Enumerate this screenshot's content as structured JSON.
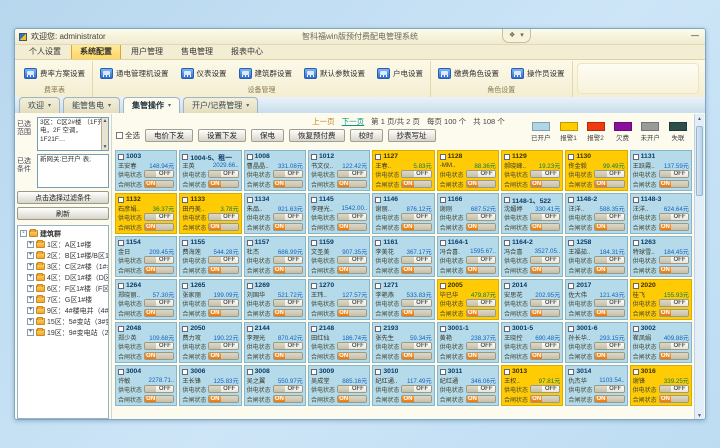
{
  "window": {
    "title": "智科福win版预付费配电管理系统",
    "welcome_label": "欢迎您:",
    "username": "administrator"
  },
  "icons": {
    "tab_dropdown": "▾",
    "minimize": "—",
    "gadget_left": "❖",
    "gadget_right": "▾",
    "tree_expand": "+",
    "tree_collapse": "-",
    "scroll_up": "▲",
    "scroll_down": "▼"
  },
  "menu": {
    "items": [
      "个人设置",
      "系统配置",
      "用户管理",
      "售电管理",
      "报表中心"
    ],
    "active_index": 1
  },
  "ribbon": {
    "groups": [
      {
        "label": "费率表",
        "buttons": [
          "费率方案设置"
        ]
      },
      {
        "label": "设备管理",
        "buttons": [
          "通电管理机设置",
          "仪表设置",
          "建筑群设置",
          "默认参数设置",
          "户电设置"
        ]
      },
      {
        "label": "角色设置",
        "buttons": [
          "缴费角色设置",
          "操作员设置"
        ]
      }
    ]
  },
  "tabs": {
    "items": [
      "欢迎",
      "能管售电",
      "集管操作",
      "开户/记费管理"
    ],
    "active_index": 2
  },
  "sidebar": {
    "range_label": "已选范围",
    "range_text": "3区：C区2#楼 （1F充电，2F 空调，1F21F…",
    "condition_label": "已选条件",
    "condition_text": "新网关:已开户 表;",
    "filter_button": "点击选择过滤条件",
    "refresh_button": "刷新",
    "tree_root": "建筑群",
    "tree_items": [
      "1区：A区1#楼",
      "2区：B区1#楼/B区1#楼",
      "3区：C区2#楼（1#会…",
      "4区：D区1#楼（D区1…",
      "6区：F区1#楼（F区1#…",
      "7区：G区1#楼",
      "9区：4#楼电井（4#楼…",
      "15区：5#变站（3#变…",
      "19区：9#变电站（2#…"
    ]
  },
  "pager": {
    "prev": "上一页",
    "next": "下一页",
    "page_info": "第 1 页/共 2 页",
    "per_page": "每页 100 个",
    "total": "共 108 个"
  },
  "toolbar": {
    "select_all": "全选",
    "buttons": [
      "电价下发",
      "设置下发",
      "保电",
      "恢复预付费",
      "校时",
      "抄表写址"
    ]
  },
  "legend": {
    "items": [
      {
        "label": "已开户",
        "color": "#aed6e8"
      },
      {
        "label": "报警1",
        "color": "#ffcc00"
      },
      {
        "label": "报警2",
        "color": "#f03a10"
      },
      {
        "label": "欠费",
        "color": "#8a0f9e"
      },
      {
        "label": "未开户",
        "color": "#9a9a9a"
      },
      {
        "label": "失联",
        "color": "#2e4d4d"
      }
    ]
  },
  "card_labels": {
    "supply": "供电状态",
    "close": "合闸状态",
    "on": "ON",
    "off": "OFF"
  },
  "cards": [
    {
      "room": "1003",
      "color": "blue",
      "name": "王安春",
      "balance": "148.94元",
      "supply": "OFF",
      "close": "ON"
    },
    {
      "room": "1004-5、租一",
      "color": "blue",
      "name": "王英",
      "balance": "2029.66..",
      "supply": "OFF",
      "close": "ON"
    },
    {
      "room": "1008",
      "color": "blue",
      "name": "曹晶晶..",
      "balance": "331.08元",
      "supply": "OFF",
      "close": "ON"
    },
    {
      "room": "1012",
      "color": "blue",
      "name": "书文仪..",
      "balance": "122.42元",
      "supply": "OFF",
      "close": "ON"
    },
    {
      "room": "1127",
      "color": "yellow",
      "name": "王春..",
      "balance": "5.83元",
      "supply": "OFF",
      "close": "ON"
    },
    {
      "room": "1128",
      "color": "yellow",
      "name": "-MM..",
      "balance": "88.36元",
      "supply": "OFF",
      "close": "ON"
    },
    {
      "room": "1129",
      "color": "yellow",
      "name": "郝晓峰..",
      "balance": "19.23元",
      "supply": "OFF",
      "close": "ON"
    },
    {
      "room": "1130",
      "color": "yellow",
      "name": "佟金毅",
      "balance": "99.49元",
      "supply": "OFF",
      "close": "ON"
    },
    {
      "room": "1131",
      "color": "blue",
      "name": "王跃霞..",
      "balance": "137.59元",
      "supply": "OFF",
      "close": "ON"
    },
    {
      "room": "1132",
      "color": "yellow",
      "name": "石彦娟..",
      "balance": "36.37元",
      "supply": "OFF",
      "close": "ON"
    },
    {
      "room": "1133",
      "color": "yellow",
      "name": "田丹美..",
      "balance": "3.78元",
      "supply": "OFF",
      "close": "ON"
    },
    {
      "room": "1134",
      "color": "blue",
      "name": "朱品..",
      "balance": "921.63元",
      "supply": "OFF",
      "close": "ON"
    },
    {
      "room": "1145",
      "color": "blue",
      "name": "李理光..",
      "balance": "1542.00..",
      "supply": "OFF",
      "close": "ON"
    },
    {
      "room": "1146",
      "color": "blue",
      "name": "谢丽..",
      "balance": "876.12元",
      "supply": "OFF",
      "close": "ON"
    },
    {
      "room": "1166",
      "color": "blue",
      "name": "谢刚",
      "balance": "687.52元",
      "supply": "OFF",
      "close": "ON"
    },
    {
      "room": "1148-1、522",
      "color": "blue",
      "name": "沈媚婷",
      "balance": "330.41元",
      "supply": "OFF",
      "close": "ON"
    },
    {
      "room": "1148-2",
      "color": "blue",
      "name": "汪洋..",
      "balance": "588.35元",
      "supply": "OFF",
      "close": "ON"
    },
    {
      "room": "1148-3",
      "color": "blue",
      "name": "汪洋..",
      "balance": "624.64元",
      "supply": "OFF",
      "close": "ON"
    },
    {
      "room": "1154",
      "color": "blue",
      "name": "金日",
      "balance": "209.45元",
      "supply": "OFF",
      "close": "ON"
    },
    {
      "room": "1155",
      "color": "blue",
      "name": "费海莲",
      "balance": "544.28元",
      "supply": "OFF",
      "close": "ON"
    },
    {
      "room": "1157",
      "color": "blue",
      "name": "杜杰",
      "balance": "686.99元",
      "supply": "OFF",
      "close": "ON"
    },
    {
      "room": "1159",
      "color": "blue",
      "name": "文圣美",
      "balance": "907.35元",
      "supply": "OFF",
      "close": "ON"
    },
    {
      "room": "1161",
      "color": "blue",
      "name": "李美花",
      "balance": "367.17元",
      "supply": "OFF",
      "close": "ON"
    },
    {
      "room": "1164-1",
      "color": "blue",
      "name": "冯合喜.",
      "balance": "1595.67..",
      "supply": "OFF",
      "close": "ON"
    },
    {
      "room": "1164-2",
      "color": "blue",
      "name": "冯合喜",
      "balance": "3527.05..",
      "supply": "OFF",
      "close": "ON"
    },
    {
      "room": "1258",
      "color": "blue",
      "name": "王福茹..",
      "balance": "184.31元",
      "supply": "OFF",
      "close": "ON"
    },
    {
      "room": "1263",
      "color": "blue",
      "name": "特球雪..",
      "balance": "184.45元",
      "supply": "OFF",
      "close": "ON"
    },
    {
      "room": "1264",
      "color": "blue",
      "name": "郑晓丽..",
      "balance": "57.30元",
      "supply": "OFF",
      "close": "ON"
    },
    {
      "room": "1265",
      "color": "blue",
      "name": "张家丽",
      "balance": "199.09元",
      "supply": "OFF",
      "close": "ON"
    },
    {
      "room": "1269",
      "color": "blue",
      "name": "刘国华",
      "balance": "521.72元",
      "supply": "OFF",
      "close": "ON"
    },
    {
      "room": "1270",
      "color": "blue",
      "name": "王玮..",
      "balance": "127.57元",
      "supply": "OFF",
      "close": "ON"
    },
    {
      "room": "1271",
      "color": "blue",
      "name": "李艳燕",
      "balance": "533.83元",
      "supply": "OFF",
      "close": "ON"
    },
    {
      "room": "2005",
      "color": "yellow",
      "name": "毕已华",
      "balance": "479.87元",
      "supply": "OFF",
      "close": "ON"
    },
    {
      "room": "2014",
      "color": "blue",
      "name": "安思花",
      "balance": "202.95元",
      "supply": "OFF",
      "close": "ON"
    },
    {
      "room": "2017",
      "color": "blue",
      "name": "佐大伟",
      "balance": "121.43元",
      "supply": "OFF",
      "close": "ON"
    },
    {
      "room": "2020",
      "color": "yellow",
      "name": "桂飞",
      "balance": "155.93元",
      "supply": "OFF",
      "close": "ON"
    },
    {
      "room": "2048",
      "color": "blue",
      "name": "郑少英",
      "balance": "109.68元",
      "supply": "OFF",
      "close": "ON"
    },
    {
      "room": "2050",
      "color": "blue",
      "name": "费力攻",
      "balance": "190.22元",
      "supply": "OFF",
      "close": "ON"
    },
    {
      "room": "2144",
      "color": "blue",
      "name": "李理光",
      "balance": "870.42元",
      "supply": "OFF",
      "close": "ON"
    },
    {
      "room": "2148",
      "color": "blue",
      "name": "田红仙",
      "balance": "186.74元",
      "supply": "OFF",
      "close": "ON"
    },
    {
      "room": "2193",
      "color": "blue",
      "name": "张先生",
      "balance": "59.34元",
      "supply": "OFF",
      "close": "ON"
    },
    {
      "room": "3001-1",
      "color": "blue",
      "name": "黄艳",
      "balance": "238.37元",
      "supply": "OFF",
      "close": "ON"
    },
    {
      "room": "3001-5",
      "color": "blue",
      "name": "王晓控",
      "balance": "690.48元",
      "supply": "OFF",
      "close": "ON"
    },
    {
      "room": "3001-6",
      "color": "blue",
      "name": "孙长华..",
      "balance": "293.15元",
      "supply": "OFF",
      "close": "ON"
    },
    {
      "room": "3002",
      "color": "blue",
      "name": "崔凤娟",
      "balance": "409.88元",
      "supply": "OFF",
      "close": "ON"
    },
    {
      "room": "3004",
      "color": "blue",
      "name": "许敏",
      "balance": "2278.71..",
      "supply": "OFF",
      "close": "ON"
    },
    {
      "room": "3006",
      "color": "blue",
      "name": "王长锋",
      "balance": "125.83元",
      "supply": "OFF",
      "close": "ON"
    },
    {
      "room": "3008",
      "color": "blue",
      "name": "吴之翼",
      "balance": "550.97元",
      "supply": "OFF",
      "close": "ON"
    },
    {
      "room": "3009",
      "color": "blue",
      "name": "吴成堂",
      "balance": "885.16元",
      "supply": "OFF",
      "close": "ON"
    },
    {
      "room": "3010",
      "color": "blue",
      "name": "纪红通..",
      "balance": "117.49元",
      "supply": "OFF",
      "close": "ON"
    },
    {
      "room": "3011",
      "color": "blue",
      "name": "纪红通",
      "balance": "346.06元",
      "supply": "OFF",
      "close": "ON"
    },
    {
      "room": "3013",
      "color": "yellow",
      "name": "王权..",
      "balance": "97.81元",
      "supply": "OFF",
      "close": "ON"
    },
    {
      "room": "3014",
      "color": "blue",
      "name": "仇杰华",
      "balance": "1103.54..",
      "supply": "OFF",
      "close": "ON"
    },
    {
      "room": "3016",
      "color": "yellow",
      "name": "谢锋",
      "balance": "339.25元",
      "supply": "OFF",
      "close": "ON"
    }
  ]
}
